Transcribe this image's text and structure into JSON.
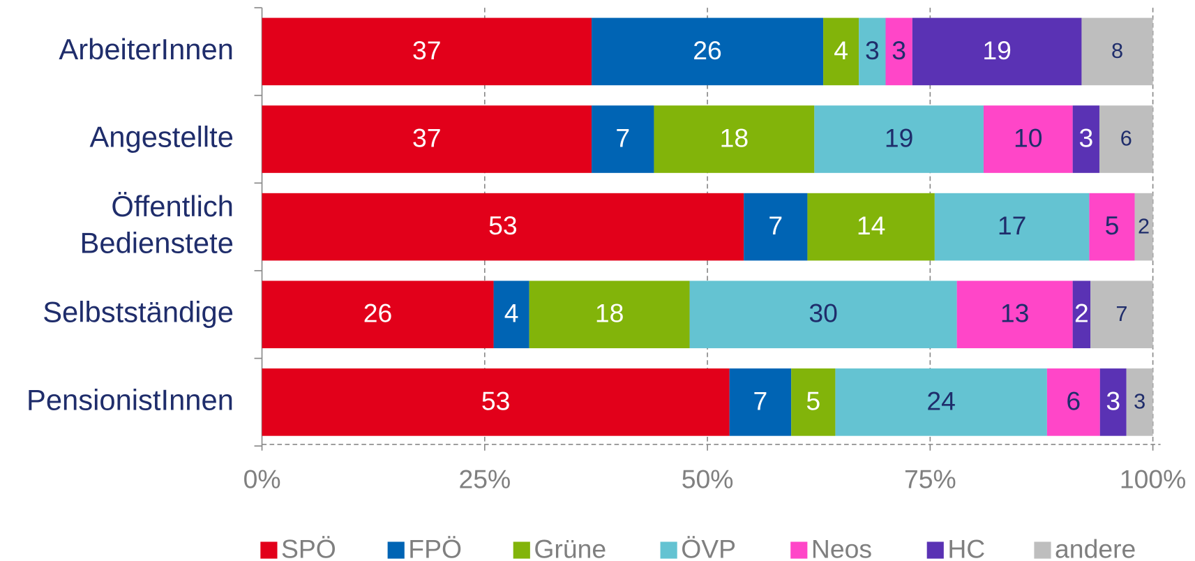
{
  "chart_data": {
    "type": "bar",
    "orientation": "horizontal",
    "stacking": "percent",
    "categories": [
      "ArbeiterInnen",
      "Angestellte",
      "Öffentlich\nBedienstete",
      "Selbstständige",
      "PensionistInnen"
    ],
    "series": [
      {
        "name": "SPÖ",
        "color": "#e2001a",
        "label_color": "#ffffff",
        "values": [
          37,
          37,
          53,
          26,
          53
        ]
      },
      {
        "name": "FPÖ",
        "color": "#0064b4",
        "label_color": "#ffffff",
        "values": [
          26,
          7,
          7,
          4,
          7
        ]
      },
      {
        "name": "Grüne",
        "color": "#82b40a",
        "label_color": "#ffffff",
        "values": [
          4,
          18,
          14,
          18,
          5
        ]
      },
      {
        "name": "ÖVP",
        "color": "#64c3d2",
        "label_color": "#1f2d6b",
        "values": [
          3,
          19,
          17,
          30,
          24
        ]
      },
      {
        "name": "Neos",
        "color": "#ff46c8",
        "label_color": "#1f2d6b",
        "values": [
          3,
          10,
          5,
          13,
          6
        ]
      },
      {
        "name": "HC",
        "color": "#5a32b4",
        "label_color": "#ffffff",
        "values": [
          19,
          3,
          null,
          2,
          3
        ]
      },
      {
        "name": "andere",
        "color": "#bebebe",
        "label_color": "#1f2d6b",
        "values": [
          8,
          6,
          2,
          7,
          3
        ]
      }
    ],
    "xlim": [
      0,
      100
    ],
    "xticks": [
      {
        "value": 0,
        "label": "0%"
      },
      {
        "value": 25,
        "label": "25%"
      },
      {
        "value": 50,
        "label": "50%"
      },
      {
        "value": 75,
        "label": "75%"
      },
      {
        "value": 100,
        "label": "100%"
      }
    ],
    "grid": true,
    "legend": "bottom"
  }
}
